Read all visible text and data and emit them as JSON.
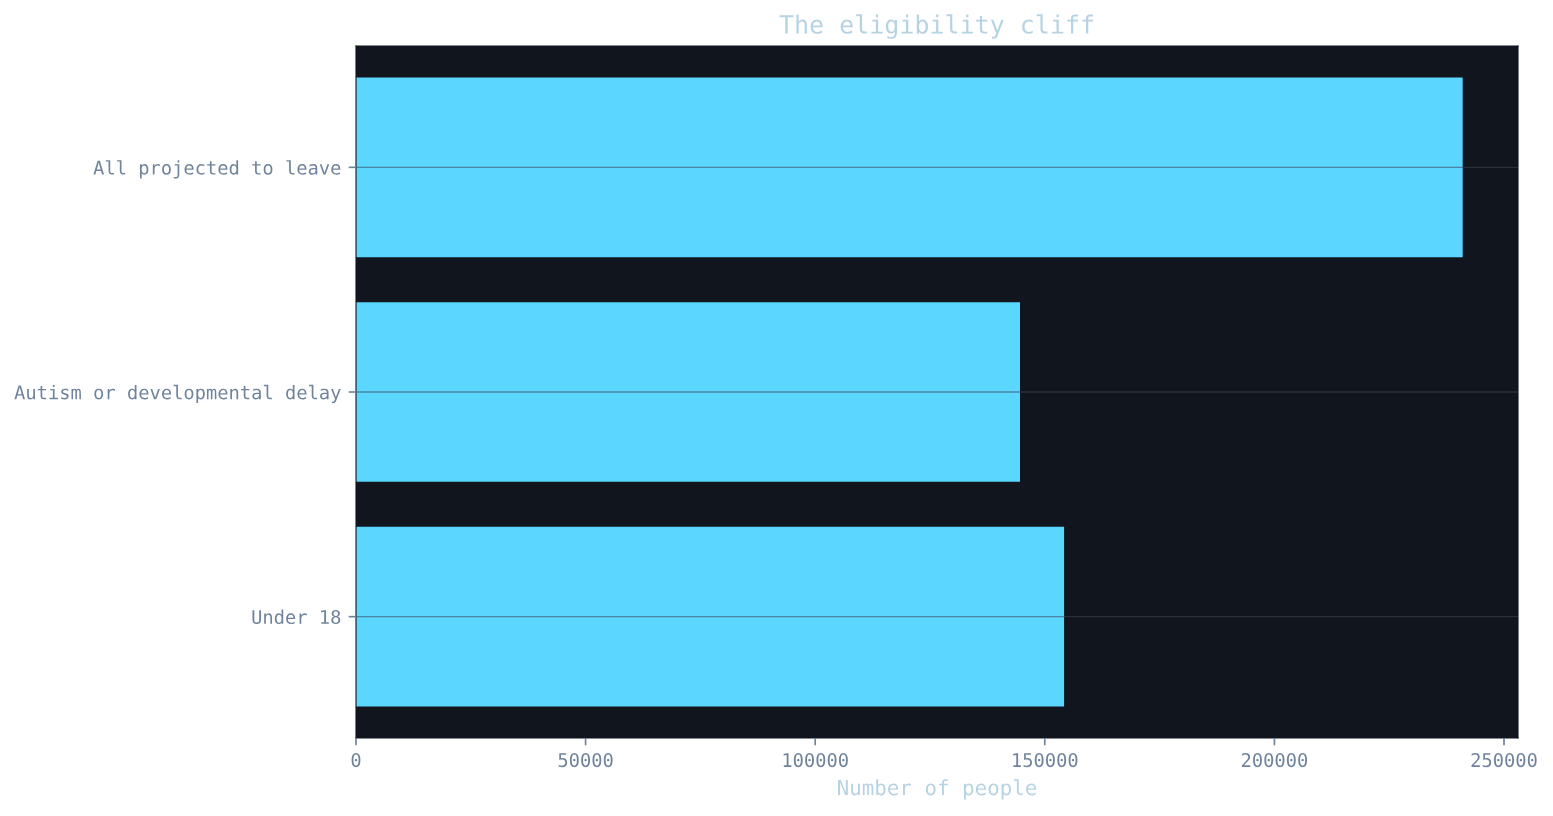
{
  "chart_data": {
    "type": "bar",
    "orientation": "horizontal",
    "title": "The eligibility cliff",
    "xlabel": "Number of people",
    "categories": [
      "All projected to leave",
      "Autism or developmental delay",
      "Under 18"
    ],
    "values": [
      241000,
      144600,
      154200
    ],
    "color": "#5bd6fe",
    "xlim": [
      0,
      253050
    ],
    "xticks": [
      0,
      50000,
      100000,
      150000,
      200000,
      250000
    ],
    "grid": "y"
  }
}
